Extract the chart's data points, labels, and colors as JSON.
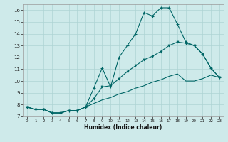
{
  "xlabel": "Humidex (Indice chaleur)",
  "bg_color": "#ceeaea",
  "grid_color": "#add4d4",
  "line_color": "#006666",
  "xlim": [
    -0.5,
    23.5
  ],
  "ylim": [
    7,
    16.5
  ],
  "xticks": [
    0,
    1,
    2,
    3,
    4,
    5,
    6,
    7,
    8,
    9,
    10,
    11,
    12,
    13,
    14,
    15,
    16,
    17,
    18,
    19,
    20,
    21,
    22,
    23
  ],
  "yticks": [
    7,
    8,
    9,
    10,
    11,
    12,
    13,
    14,
    15,
    16
  ],
  "series1_x": [
    0,
    1,
    2,
    3,
    4,
    5,
    6,
    7,
    8,
    9,
    10,
    11,
    12,
    13,
    14,
    15,
    16,
    17,
    18,
    19,
    20,
    21,
    22,
    23
  ],
  "series1_y": [
    7.8,
    7.6,
    7.6,
    7.3,
    7.3,
    7.5,
    7.5,
    7.8,
    9.4,
    11.1,
    9.5,
    12.0,
    13.0,
    14.0,
    15.8,
    15.5,
    16.2,
    16.2,
    14.8,
    13.3,
    13.0,
    12.3,
    11.1,
    10.3
  ],
  "series2_x": [
    0,
    1,
    2,
    3,
    4,
    5,
    6,
    7,
    8,
    9,
    10,
    11,
    12,
    13,
    14,
    15,
    16,
    17,
    18,
    19,
    20,
    21,
    22,
    23
  ],
  "series2_y": [
    7.8,
    7.6,
    7.6,
    7.3,
    7.3,
    7.5,
    7.5,
    7.8,
    8.5,
    9.5,
    9.6,
    10.2,
    10.8,
    11.3,
    11.8,
    12.1,
    12.5,
    13.0,
    13.3,
    13.2,
    13.0,
    12.3,
    11.1,
    10.3
  ],
  "series3_x": [
    0,
    1,
    2,
    3,
    4,
    5,
    6,
    7,
    8,
    9,
    10,
    11,
    12,
    13,
    14,
    15,
    16,
    17,
    18,
    19,
    20,
    21,
    22,
    23
  ],
  "series3_y": [
    7.8,
    7.6,
    7.6,
    7.3,
    7.3,
    7.5,
    7.5,
    7.8,
    8.1,
    8.4,
    8.6,
    8.9,
    9.1,
    9.4,
    9.6,
    9.9,
    10.1,
    10.4,
    10.6,
    10.0,
    10.0,
    10.2,
    10.5,
    10.3
  ]
}
